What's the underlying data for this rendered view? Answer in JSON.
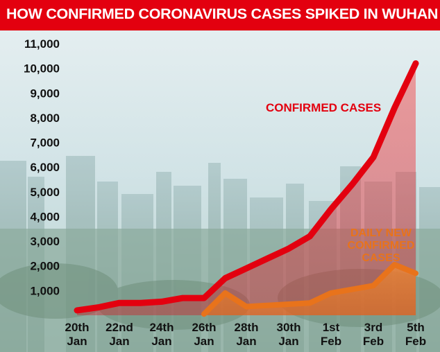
{
  "title": "HOW CONFIRMED CORONAVIRUS CASES SPIKED IN WUHAN",
  "colors": {
    "title_bg": "#e3000f",
    "confirmed": "#e3000f",
    "daily": "#e8731b"
  },
  "chart_data": {
    "type": "line",
    "title": "HOW CONFIRMED CORONAVIRUS CASES SPIKED IN WUHAN",
    "xlabel": "",
    "ylabel": "",
    "ylim": [
      0,
      11000
    ],
    "yticks": [
      "1,000",
      "2,000",
      "3,000",
      "4,000",
      "5,000",
      "6,000",
      "7,000",
      "8,000",
      "9,000",
      "10,000",
      "11,000"
    ],
    "ytick_values": [
      1000,
      2000,
      3000,
      4000,
      5000,
      6000,
      7000,
      8000,
      9000,
      10000,
      11000
    ],
    "xticks": [
      {
        "day": 0,
        "line1": "20th",
        "line2": "Jan"
      },
      {
        "day": 2,
        "line1": "22nd",
        "line2": "Jan"
      },
      {
        "day": 4,
        "line1": "24th",
        "line2": "Jan"
      },
      {
        "day": 6,
        "line1": "26th",
        "line2": "Jan"
      },
      {
        "day": 8,
        "line1": "28th",
        "line2": "Jan"
      },
      {
        "day": 10,
        "line1": "30th",
        "line2": "Jan"
      },
      {
        "day": 12,
        "line1": "1st",
        "line2": "Feb"
      },
      {
        "day": 14,
        "line1": "3rd",
        "line2": "Feb"
      },
      {
        "day": 16,
        "line1": "5th",
        "line2": "Feb"
      }
    ],
    "grid": false,
    "series": [
      {
        "name": "CONFIRMED CASES",
        "color": "#e3000f",
        "x": [
          0,
          1,
          2,
          3,
          4,
          5,
          6,
          7,
          8,
          9,
          10,
          11,
          12,
          13,
          14,
          15,
          16
        ],
        "values": [
          200,
          320,
          500,
          500,
          550,
          700,
          700,
          1500,
          1900,
          2300,
          2700,
          3200,
          4300,
          5300,
          6400,
          8400,
          10200
        ]
      },
      {
        "name": "DAILY NEW CONFIRMED CASES",
        "color": "#e8731b",
        "x": [
          6,
          7,
          8,
          9,
          10,
          11,
          12,
          13,
          14,
          15,
          16
        ],
        "values": [
          50,
          900,
          350,
          400,
          450,
          500,
          900,
          1050,
          1200,
          2050,
          1700
        ]
      }
    ],
    "annotations": {
      "confirmed_label": "CONFIRMED CASES",
      "daily_label_lines": [
        "DAILY NEW",
        "CONFIRMED",
        "CASES"
      ]
    }
  }
}
